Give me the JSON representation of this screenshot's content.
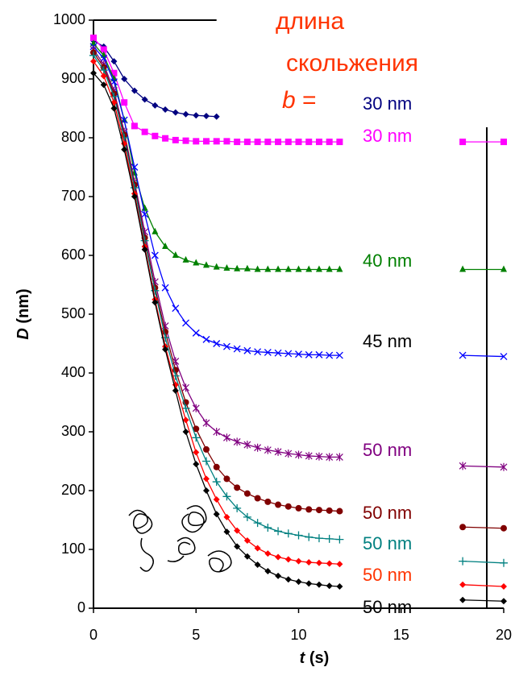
{
  "chart_data": {
    "type": "line",
    "annotations": [
      "длина",
      "скольжения"
    ],
    "b_label": {
      "symbol": "b",
      "suffix": "="
    },
    "annotation_color": "#ff3300",
    "x_label": {
      "symbol": "t",
      "unit": "(s)"
    },
    "y_label": {
      "symbol": "D",
      "unit": "(nm)"
    },
    "xlim": [
      0,
      20
    ],
    "ylim": [
      0,
      1000
    ],
    "xticks": [
      0,
      5,
      10,
      15,
      20
    ],
    "yticks": [
      0,
      100,
      200,
      300,
      400,
      500,
      600,
      700,
      800,
      900,
      1000
    ],
    "x": [
      0,
      0.5,
      1,
      1.5,
      2,
      2.5,
      3,
      3.5,
      4,
      4.5,
      5,
      5.5,
      6,
      6.5,
      7,
      7.5,
      8,
      8.5,
      9,
      9.5,
      10,
      10.5,
      11,
      11.5,
      12,
      15,
      18,
      20
    ],
    "series": [
      {
        "name": "30 nm",
        "color": "#000080",
        "label_color": "#000080",
        "marker": "diamond",
        "values": [
          965,
          955,
          930,
          900,
          880,
          865,
          855,
          848,
          843,
          840,
          838,
          837,
          836,
          null,
          null,
          null,
          null,
          null,
          null,
          null,
          null,
          null,
          null,
          null,
          null,
          null,
          null,
          null
        ]
      },
      {
        "name": "30 nm",
        "color": "#ff00ff",
        "label_color": "#ff00ff",
        "marker": "square",
        "values": [
          970,
          950,
          910,
          860,
          820,
          810,
          803,
          799,
          796,
          795,
          794,
          794,
          794,
          794,
          793,
          793,
          793,
          793,
          793,
          793,
          793,
          793,
          793,
          793,
          793,
          null,
          793,
          793
        ]
      },
      {
        "name": "40 nm",
        "color": "#008000",
        "label_color": "#008000",
        "marker": "triangle",
        "values": [
          960,
          940,
          900,
          830,
          740,
          680,
          640,
          615,
          600,
          592,
          587,
          583,
          580,
          578,
          577,
          577,
          576,
          576,
          576,
          576,
          576,
          576,
          576,
          576,
          576,
          null,
          576,
          576
        ]
      },
      {
        "name": "45 nm",
        "color": "#0000ff",
        "label_color": "#000000",
        "marker": "x",
        "values": [
          955,
          935,
          895,
          830,
          750,
          670,
          600,
          545,
          510,
          485,
          468,
          457,
          450,
          445,
          441,
          438,
          436,
          435,
          434,
          433,
          432,
          431,
          431,
          430,
          430,
          null,
          430,
          428
        ]
      },
      {
        "name": "50 nm",
        "color": "#800080",
        "label_color": "#800080",
        "marker": "star",
        "values": [
          950,
          925,
          880,
          810,
          725,
          640,
          555,
          480,
          420,
          375,
          340,
          315,
          300,
          290,
          283,
          278,
          273,
          269,
          266,
          263,
          261,
          259,
          258,
          257,
          257,
          null,
          242,
          240
        ]
      },
      {
        "name": "50 nm",
        "color": "#800000",
        "label_color": "#800000",
        "marker": "circle",
        "values": [
          945,
          920,
          875,
          805,
          720,
          630,
          545,
          470,
          405,
          350,
          305,
          270,
          240,
          220,
          205,
          195,
          187,
          181,
          176,
          173,
          170,
          168,
          167,
          166,
          165,
          null,
          138,
          136
        ]
      },
      {
        "name": "50 nm",
        "color": "#008080",
        "label_color": "#008080",
        "marker": "plus",
        "values": [
          940,
          915,
          870,
          800,
          715,
          625,
          540,
          460,
          395,
          340,
          290,
          250,
          215,
          190,
          170,
          155,
          145,
          137,
          131,
          127,
          124,
          121,
          119,
          118,
          117,
          null,
          80,
          77
        ]
      },
      {
        "name": "50 nm",
        "color": "#ff0000",
        "label_color": "#ff3300",
        "marker": "diamond",
        "values": [
          930,
          905,
          860,
          790,
          705,
          615,
          525,
          445,
          380,
          320,
          265,
          220,
          185,
          155,
          132,
          115,
          102,
          93,
          87,
          83,
          80,
          78,
          77,
          76,
          75,
          null,
          40,
          37
        ]
      },
      {
        "name": "50 nm",
        "color": "#000000",
        "label_color": "#000000",
        "marker": "diamond",
        "values": [
          910,
          890,
          850,
          780,
          700,
          610,
          520,
          440,
          370,
          300,
          245,
          200,
          160,
          130,
          105,
          88,
          74,
          63,
          55,
          49,
          45,
          42,
          40,
          38,
          37,
          null,
          14,
          12
        ]
      }
    ]
  }
}
